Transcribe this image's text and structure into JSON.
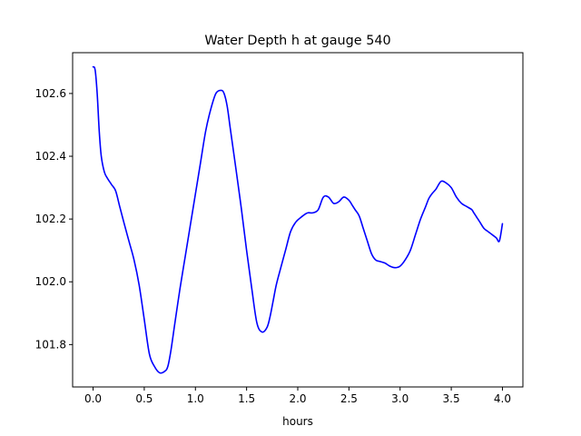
{
  "chart_data": {
    "type": "line",
    "title": "Water Depth h at gauge 540",
    "xlabel": "hours",
    "ylabel": "",
    "xlim": [
      -0.2,
      4.2
    ],
    "ylim": [
      101.665,
      102.73
    ],
    "xticks": [
      0.0,
      0.5,
      1.0,
      1.5,
      2.0,
      2.5,
      3.0,
      3.5,
      4.0
    ],
    "xtick_labels": [
      "0.0",
      "0.5",
      "1.0",
      "1.5",
      "2.0",
      "2.5",
      "3.0",
      "3.5",
      "4.0"
    ],
    "yticks": [
      101.8,
      102.0,
      102.2,
      102.4,
      102.6
    ],
    "ytick_labels": [
      "101.8",
      "102.0",
      "102.2",
      "102.4",
      "102.6"
    ],
    "grid": false,
    "line_color": "#0000ff",
    "series": [
      {
        "x": [
          0.0,
          0.02,
          0.04,
          0.06,
          0.08,
          0.11,
          0.14,
          0.18,
          0.22,
          0.26,
          0.3,
          0.35,
          0.4,
          0.45,
          0.5,
          0.55,
          0.6,
          0.65,
          0.7,
          0.73,
          0.76,
          0.8,
          0.85,
          0.9,
          0.95,
          1.0,
          1.05,
          1.1,
          1.15,
          1.2,
          1.25,
          1.28,
          1.31,
          1.34,
          1.37,
          1.4,
          1.45,
          1.5,
          1.55,
          1.6,
          1.65,
          1.7,
          1.73,
          1.76,
          1.79,
          1.83,
          1.88,
          1.93,
          1.98,
          2.03,
          2.07,
          2.1,
          2.15,
          2.2,
          2.25,
          2.3,
          2.35,
          2.4,
          2.45,
          2.5,
          2.53,
          2.56,
          2.6,
          2.64,
          2.68,
          2.72,
          2.76,
          2.8,
          2.85,
          2.9,
          2.95,
          3.0,
          3.05,
          3.1,
          3.15,
          3.2,
          3.25,
          3.28,
          3.31,
          3.35,
          3.4,
          3.45,
          3.5,
          3.55,
          3.6,
          3.65,
          3.7,
          3.72,
          3.75,
          3.78,
          3.82,
          3.86,
          3.9,
          3.94,
          3.97,
          4.0
        ],
        "y": [
          102.685,
          102.675,
          102.6,
          102.48,
          102.4,
          102.35,
          102.33,
          102.31,
          102.29,
          102.24,
          102.19,
          102.13,
          102.07,
          101.99,
          101.88,
          101.77,
          101.73,
          101.71,
          101.715,
          101.73,
          101.78,
          101.87,
          101.98,
          102.08,
          102.18,
          102.28,
          102.38,
          102.48,
          102.55,
          102.6,
          102.61,
          102.6,
          102.56,
          102.49,
          102.42,
          102.35,
          102.23,
          102.1,
          101.98,
          101.87,
          101.84,
          101.855,
          101.89,
          101.94,
          101.99,
          102.04,
          102.1,
          102.16,
          102.19,
          102.205,
          102.215,
          102.22,
          102.22,
          102.23,
          102.27,
          102.27,
          102.25,
          102.255,
          102.27,
          102.26,
          102.245,
          102.23,
          102.21,
          102.17,
          102.13,
          102.09,
          102.07,
          102.065,
          102.06,
          102.05,
          102.045,
          102.05,
          102.07,
          102.1,
          102.15,
          102.2,
          102.24,
          102.265,
          102.28,
          102.295,
          102.32,
          102.315,
          102.3,
          102.27,
          102.25,
          102.24,
          102.23,
          102.22,
          102.205,
          102.19,
          102.17,
          102.16,
          102.15,
          102.14,
          102.13,
          102.185
        ]
      }
    ]
  }
}
